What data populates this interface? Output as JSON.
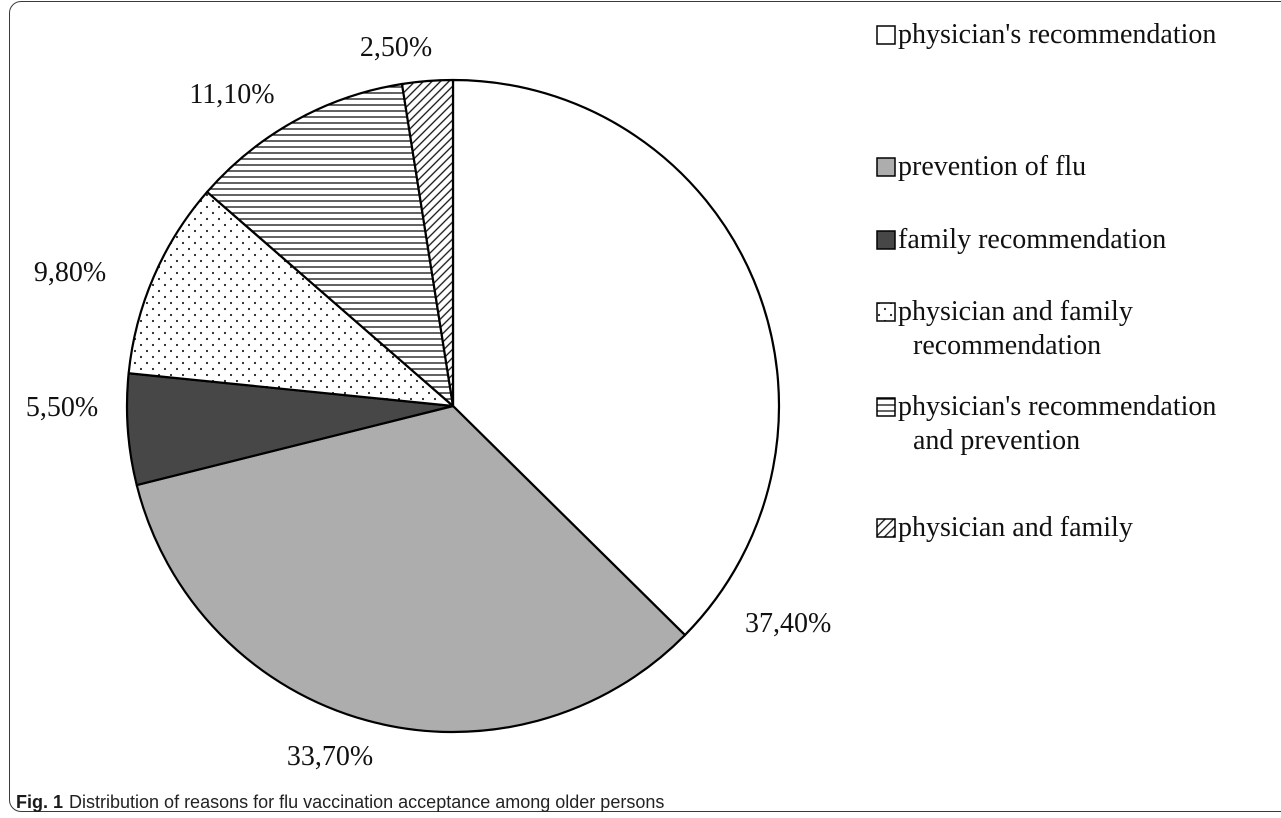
{
  "chart_data": {
    "type": "pie",
    "start_angle_deg": 0,
    "direction": "clockwise",
    "slices": [
      {
        "label": "physician's recommendation",
        "value": 37.4,
        "value_label": "37,40%",
        "fill": "plain-white"
      },
      {
        "label": "prevention of flu",
        "value": 33.7,
        "value_label": "33,70%",
        "fill": "solid-light-gray"
      },
      {
        "label": "family recommendation",
        "value": 5.5,
        "value_label": "5,50%",
        "fill": "solid-dark-gray"
      },
      {
        "label": "physician and family recommendation",
        "value": 9.8,
        "value_label": "9,80%",
        "fill": "dots"
      },
      {
        "label": "physician's recommendation and prevention",
        "value": 11.1,
        "value_label": "11,10%",
        "fill": "horizontal-lines"
      },
      {
        "label": "physician and family",
        "value": 2.5,
        "value_label": "2,50%",
        "fill": "diagonal-hatch"
      }
    ],
    "legend_position": "right",
    "colors": {
      "light_gray": "#adadad",
      "dark_gray": "#474747",
      "outline": "#000000"
    }
  },
  "legend": {
    "items": [
      {
        "lines": [
          "physician's recommendation"
        ]
      },
      {
        "lines": [
          "prevention of flu"
        ]
      },
      {
        "lines": [
          "family recommendation"
        ]
      },
      {
        "lines": [
          "physician and family",
          "recommendation"
        ]
      },
      {
        "lines": [
          "physician's recommendation",
          "and prevention"
        ]
      },
      {
        "lines": [
          "physician and family"
        ]
      }
    ]
  },
  "caption": {
    "label": "Fig. 1",
    "text": "Distribution of reasons for flu vaccination acceptance among older persons"
  }
}
